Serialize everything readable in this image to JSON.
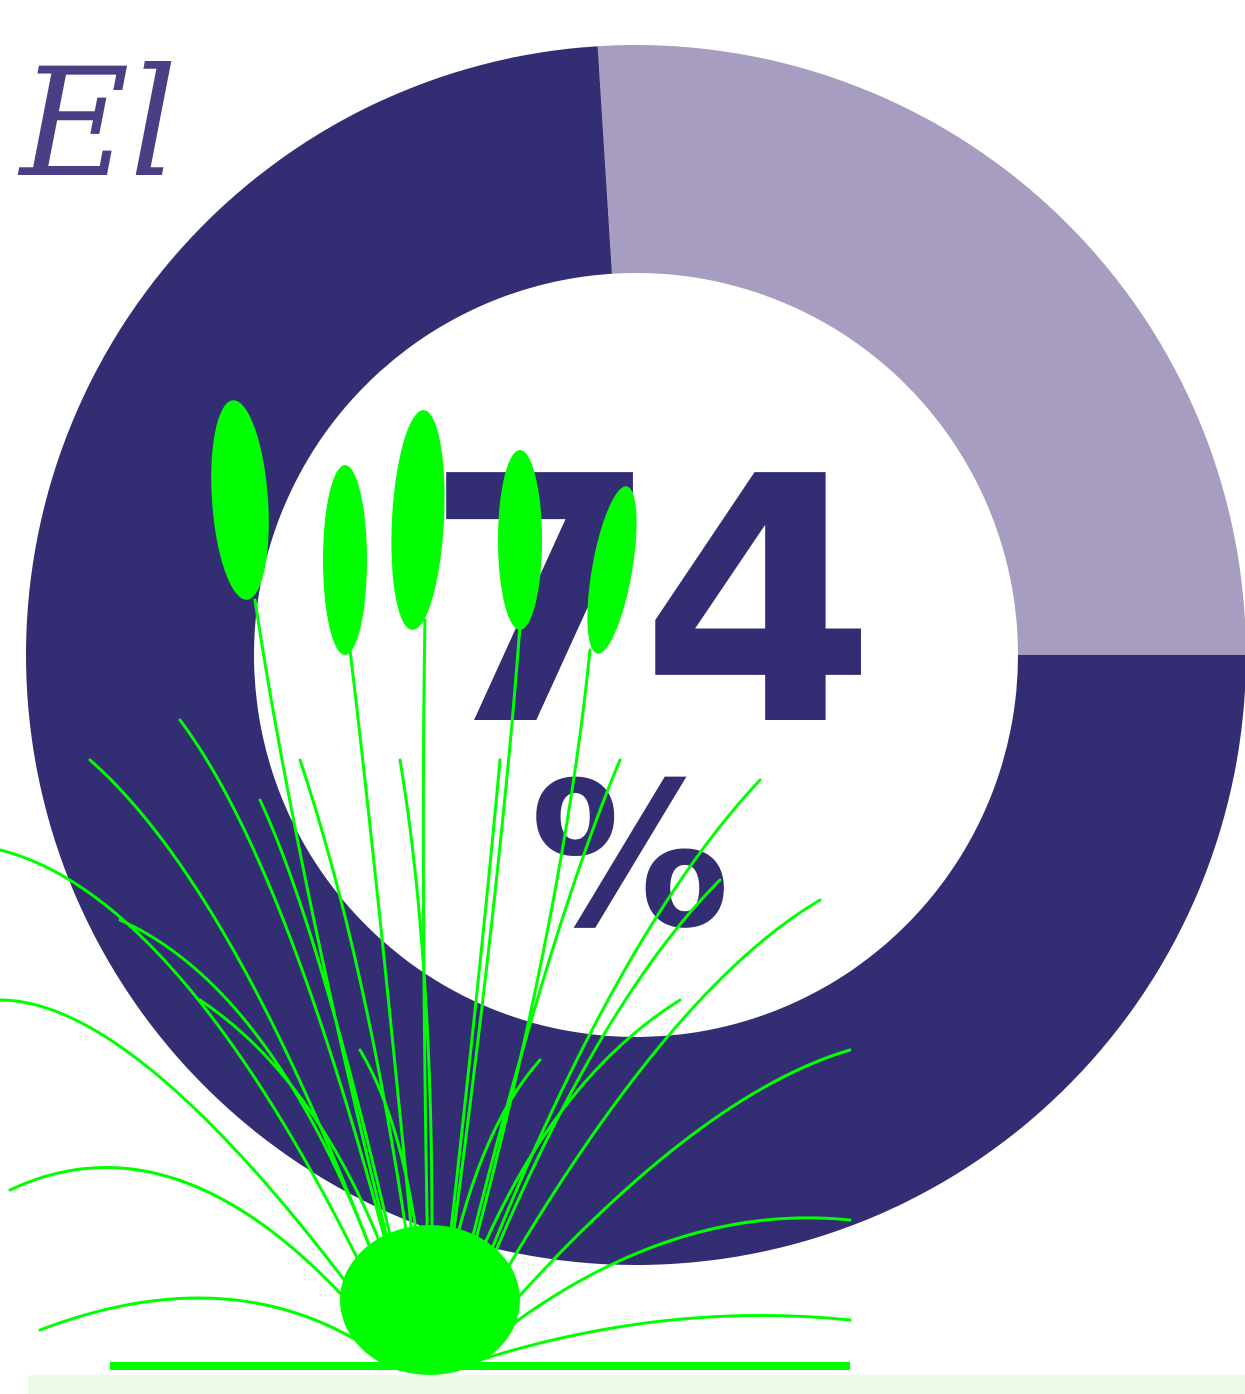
{
  "chart_data": {
    "type": "donut",
    "title": "El",
    "values": [
      74,
      26
    ],
    "colors": [
      "#332d74",
      "#a79dc0"
    ],
    "unit": "%"
  }
}
